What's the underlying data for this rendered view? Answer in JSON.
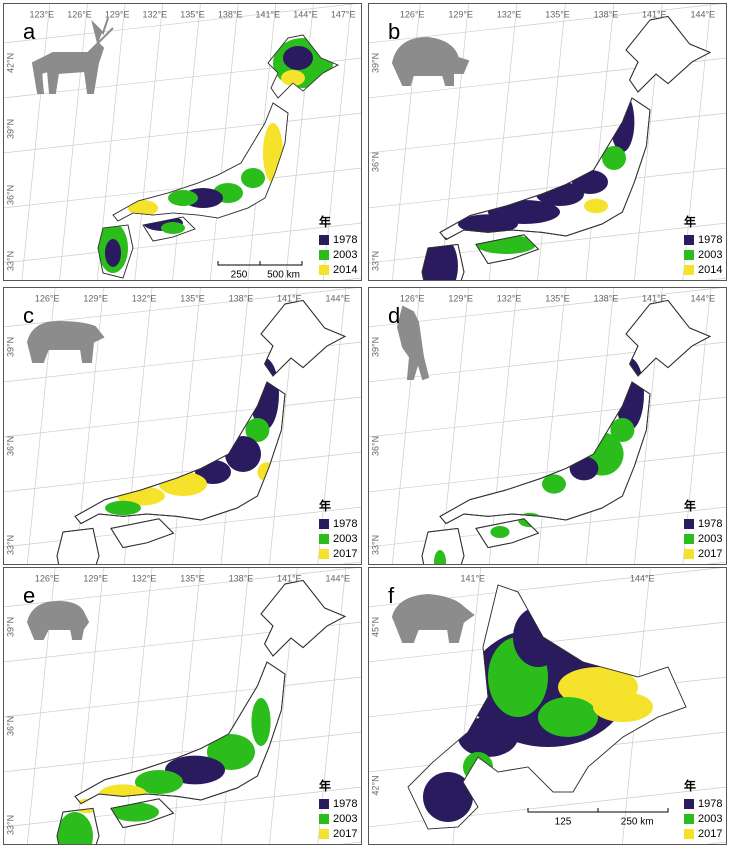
{
  "panels": [
    {
      "letter": "a",
      "lon_labels": [
        "123°E",
        "126°E",
        "129°E",
        "132°E",
        "135°E",
        "138°E",
        "141°E",
        "144°E",
        "147°E"
      ],
      "lat_labels": [
        "42°N",
        "39°N",
        "36°N",
        "33°N"
      ],
      "legend": {
        "title": "年",
        "items": [
          {
            "label": "1978",
            "color": "#2a1a5e"
          },
          {
            "label": "2003",
            "color": "#2bbd1c"
          },
          {
            "label": "2014",
            "color": "#f5e22a"
          }
        ]
      },
      "scale": [
        "250",
        "500 km"
      ]
    },
    {
      "letter": "b",
      "lon_labels": [
        "126°E",
        "129°E",
        "132°E",
        "135°E",
        "138°E",
        "141°E",
        "144°E"
      ],
      "lat_labels": [
        "39°N",
        "36°N",
        "33°N"
      ],
      "legend": {
        "title": "年",
        "items": [
          {
            "label": "1978",
            "color": "#2a1a5e"
          },
          {
            "label": "2003",
            "color": "#2bbd1c"
          },
          {
            "label": "2014",
            "color": "#f5e22a"
          }
        ]
      }
    },
    {
      "letter": "c",
      "lon_labels": [
        "126°E",
        "129°E",
        "132°E",
        "135°E",
        "138°E",
        "141°E",
        "144°E"
      ],
      "lat_labels": [
        "39°N",
        "36°N",
        "33°N"
      ],
      "legend": {
        "title": "年",
        "items": [
          {
            "label": "1978",
            "color": "#2a1a5e"
          },
          {
            "label": "2003",
            "color": "#2bbd1c"
          },
          {
            "label": "2017",
            "color": "#f5e22a"
          }
        ]
      }
    },
    {
      "letter": "d",
      "lon_labels": [
        "126°E",
        "129°E",
        "132°E",
        "135°E",
        "138°E",
        "141°E",
        "144°E"
      ],
      "lat_labels": [
        "39°N",
        "36°N",
        "33°N"
      ],
      "legend": {
        "title": "年",
        "items": [
          {
            "label": "1978",
            "color": "#2a1a5e"
          },
          {
            "label": "2003",
            "color": "#2bbd1c"
          },
          {
            "label": "2017",
            "color": "#f5e22a"
          }
        ]
      }
    },
    {
      "letter": "e",
      "lon_labels": [
        "126°E",
        "129°E",
        "132°E",
        "135°E",
        "138°E",
        "141°E",
        "144°E"
      ],
      "lat_labels": [
        "39°N",
        "36°N",
        "33°N"
      ],
      "legend": {
        "title": "年",
        "items": [
          {
            "label": "1978",
            "color": "#2a1a5e"
          },
          {
            "label": "2003",
            "color": "#2bbd1c"
          },
          {
            "label": "2017",
            "color": "#f5e22a"
          }
        ]
      }
    },
    {
      "letter": "f",
      "lon_labels": [
        "141°E",
        "144°E"
      ],
      "lat_labels": [
        "45°N",
        "42°N"
      ],
      "legend": {
        "title": "年",
        "items": [
          {
            "label": "1978",
            "color": "#2a1a5e"
          },
          {
            "label": "2003",
            "color": "#2bbd1c"
          },
          {
            "label": "2017",
            "color": "#f5e22a"
          }
        ]
      },
      "scale": [
        "125",
        "250 km"
      ]
    }
  ]
}
